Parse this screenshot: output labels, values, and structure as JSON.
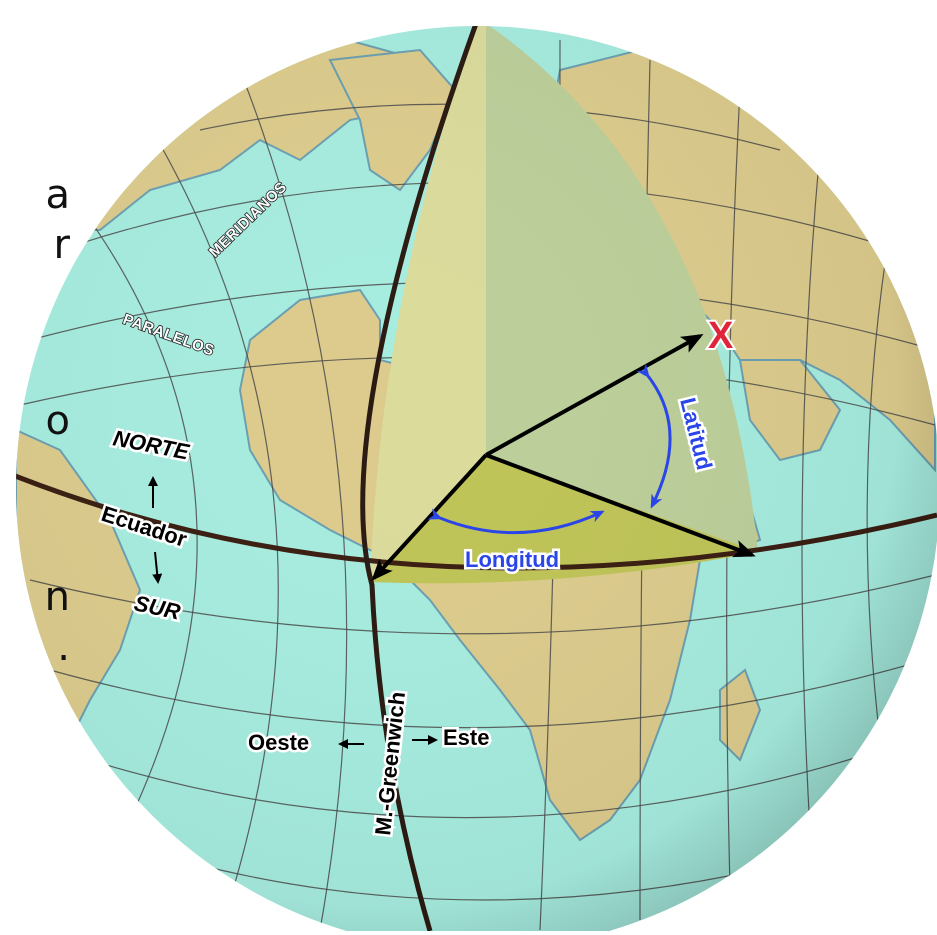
{
  "labels": {
    "meridianos": "MERIDIANOS",
    "paralelos": "PARALELOS",
    "norte": "NORTE",
    "ecuador": "Ecuador",
    "sur": "SUR",
    "oeste": "Oeste",
    "este": "Este",
    "greenwich": "M.-Greenwich",
    "latitud": "Latitud",
    "longitud": "Longitud",
    "point_marker": "X"
  },
  "clipped_text": [
    "a",
    "r",
    "o",
    "n",
    "."
  ],
  "colors": {
    "ocean": "#a6ecdf",
    "land": "#dccb8c",
    "grid": "#4a4a4a",
    "equator": "#3a1e12",
    "meridian": "#2a1a12",
    "latitude_wedge": "#bccf9a",
    "meridian_plane": "#dbdb9c",
    "longitude_wedge": "#bfc457",
    "angle_arc": "#2b46e8",
    "marker": "#e0243a",
    "vector": "#000000"
  }
}
